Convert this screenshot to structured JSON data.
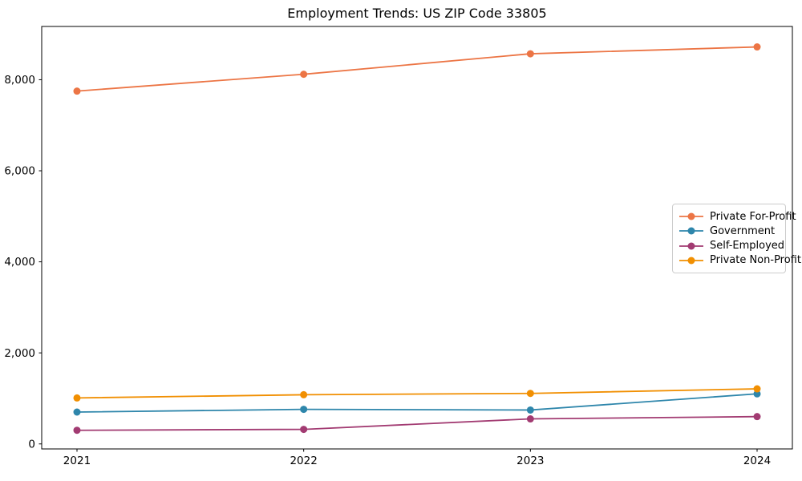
{
  "figure": {
    "background": "#ffffff",
    "axes_color": "#000000"
  },
  "chart_data": {
    "type": "line",
    "title": "Employment Trends: US ZIP Code 33805",
    "xlabel": "",
    "ylabel": "",
    "x": [
      2021,
      2022,
      2023,
      2024
    ],
    "xtick_labels": [
      "2021",
      "2022",
      "2023",
      "2024"
    ],
    "yticks": [
      0,
      2000,
      4000,
      6000,
      8000
    ],
    "ytick_labels": [
      "0",
      "2,000",
      "4,000",
      "6,000",
      "8,000"
    ],
    "ylim": [
      -110,
      9170
    ],
    "grid": false,
    "legend_position": "center-right",
    "marker": "circle",
    "series": [
      {
        "name": "Private For-Profit",
        "color": "#EC7545",
        "values": [
          7750,
          8120,
          8570,
          8720
        ]
      },
      {
        "name": "Government",
        "color": "#2E86AB",
        "values": [
          700,
          760,
          745,
          1100
        ]
      },
      {
        "name": "Self-Employed",
        "color": "#A23B72",
        "values": [
          300,
          320,
          550,
          600
        ]
      },
      {
        "name": "Private Non-Profit",
        "color": "#F18F01",
        "values": [
          1010,
          1080,
          1110,
          1210
        ]
      }
    ]
  }
}
